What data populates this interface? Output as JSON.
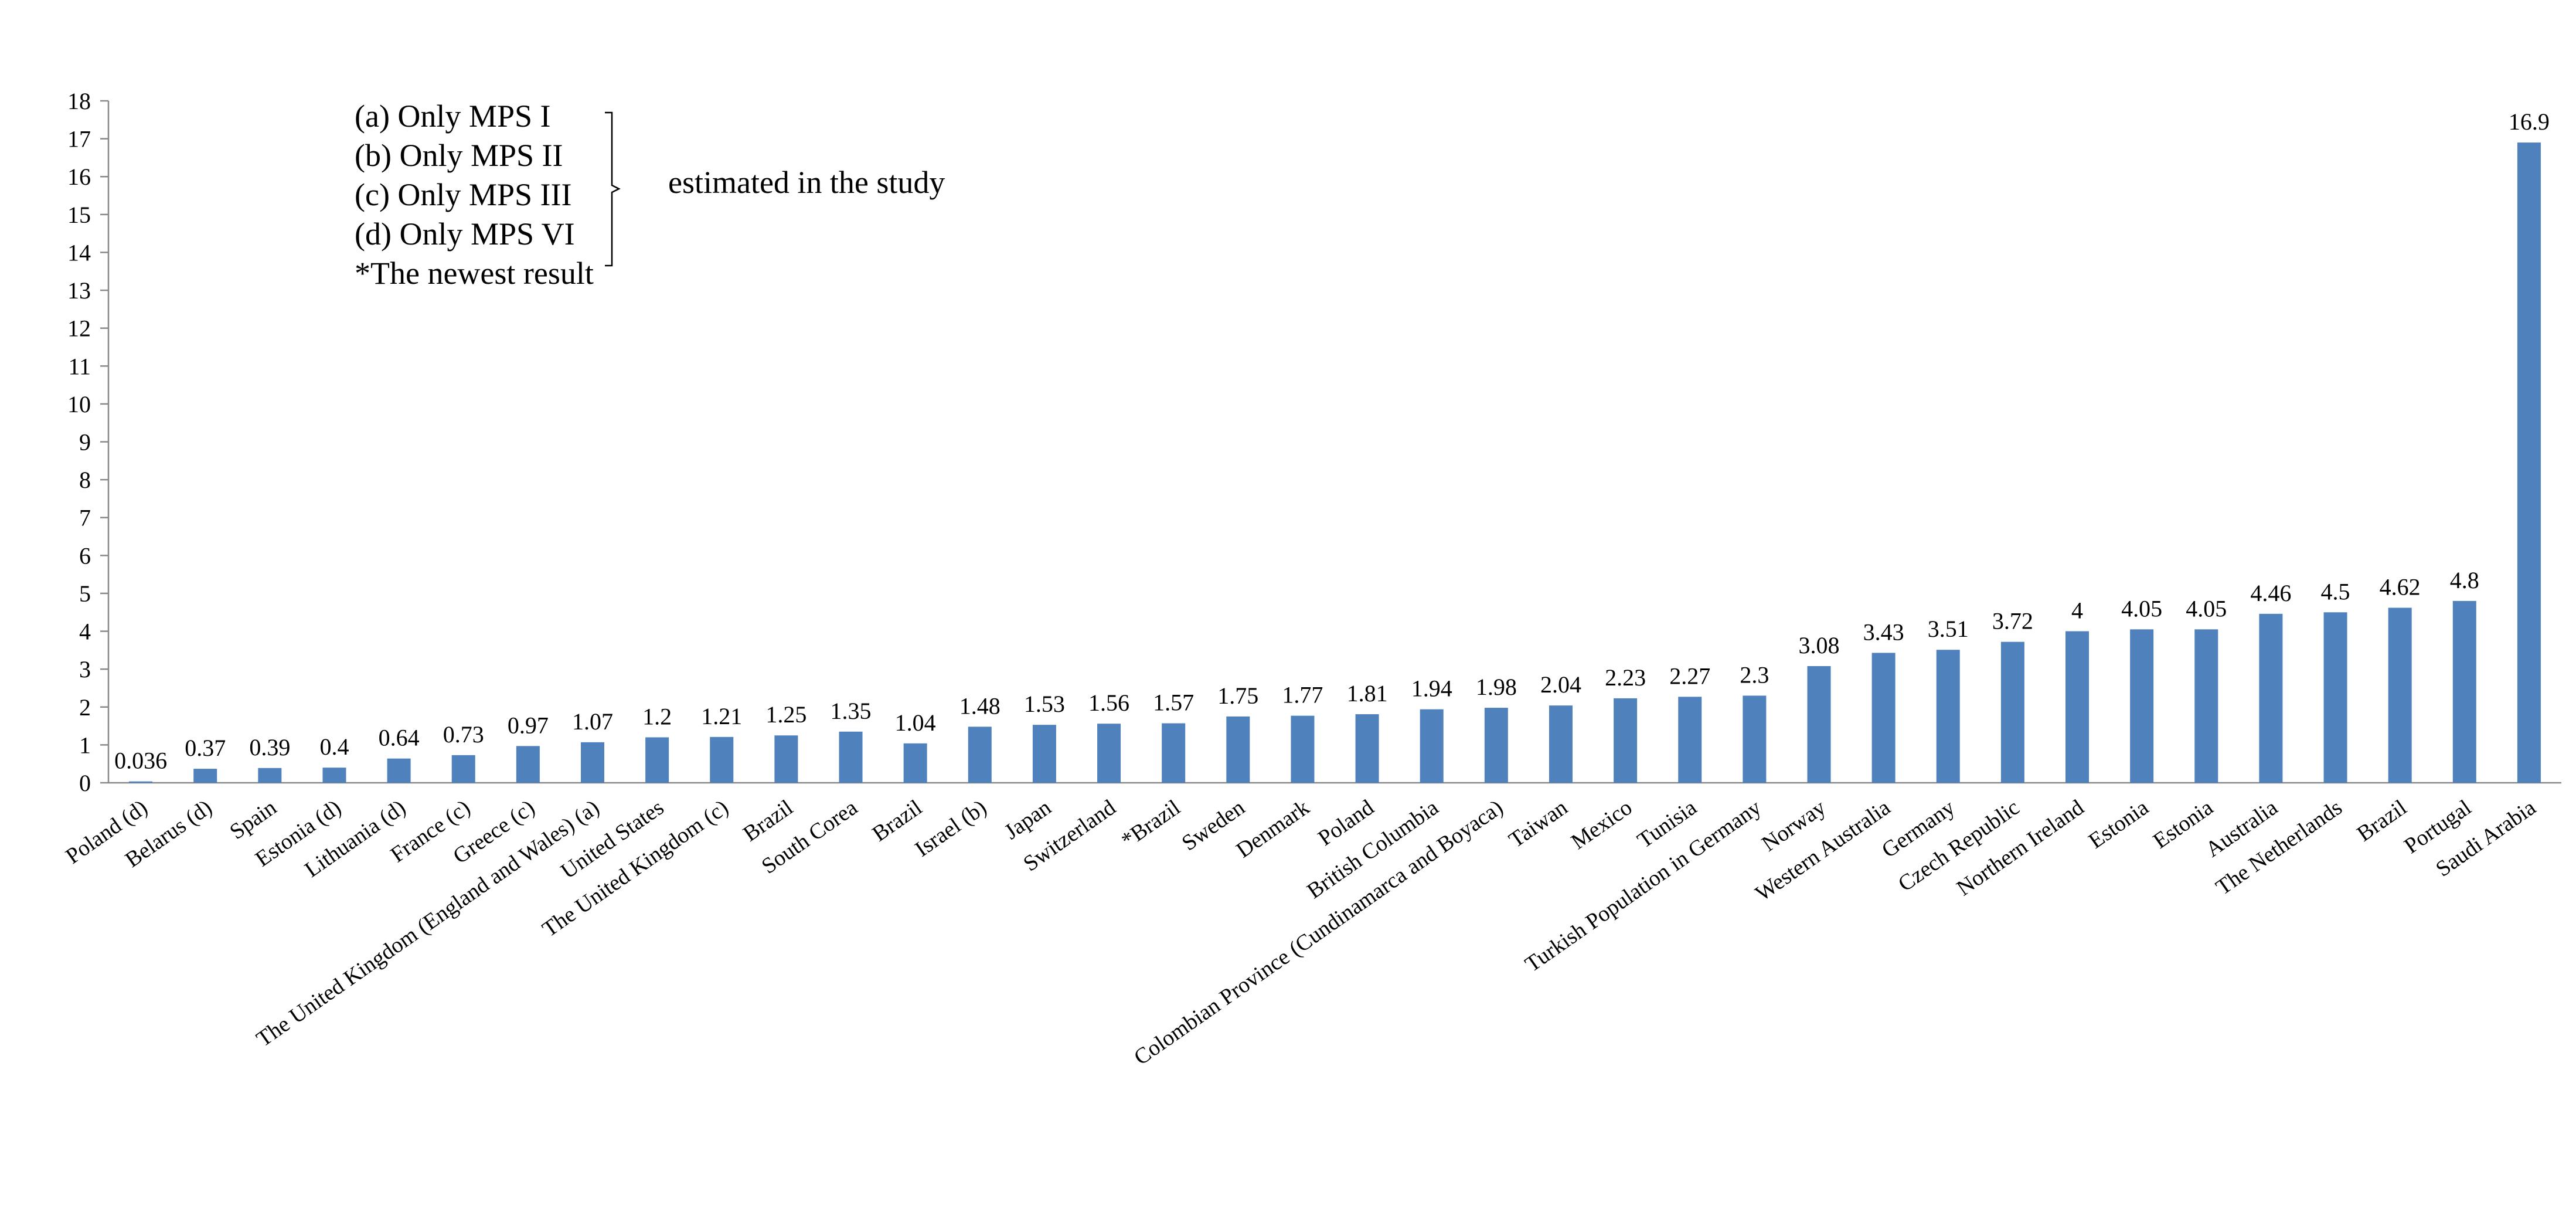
{
  "chart_data": {
    "type": "bar",
    "title": "",
    "xlabel": "",
    "ylabel": "",
    "ylim": [
      0,
      18
    ],
    "yticks": [
      0,
      1,
      2,
      3,
      4,
      5,
      6,
      7,
      8,
      9,
      10,
      11,
      12,
      13,
      14,
      15,
      16,
      17,
      18
    ],
    "grid": false,
    "bar_color": "#4f81bd",
    "categories": [
      "Poland (d)",
      "Belarus (d)",
      "Spain",
      "Estonia (d)",
      "Lithuania (d)",
      "France (c)",
      "Greece (c)",
      "The United Kingdom (England and Wales) (a)",
      "United States",
      "The United Kingdom  (c)",
      "Brazil",
      "South Corea",
      "Brazil",
      "Israel (b)",
      "Japan",
      "Switzerland",
      "*Brazil",
      "Sweden",
      "Denmark",
      "Poland",
      "British Columbia",
      "Colombian Province (Cundinamarca and Boyaca)",
      "Taiwan",
      "Mexico",
      "Tunisia",
      "Turkish Population in Germany",
      "Norway",
      "Western Australia",
      "Germany",
      "Czech Republic",
      "Northern Ireland",
      "Estonia",
      "Estonia",
      "Australia",
      "The Netherlands",
      "Brazil",
      "Portugal",
      "Saudi Arabia"
    ],
    "values": [
      0.036,
      0.37,
      0.39,
      0.4,
      0.64,
      0.73,
      0.97,
      1.07,
      1.2,
      1.21,
      1.25,
      1.35,
      1.04,
      1.48,
      1.53,
      1.56,
      1.57,
      1.75,
      1.77,
      1.81,
      1.94,
      1.98,
      2.04,
      2.23,
      2.27,
      2.3,
      3.08,
      3.43,
      3.51,
      3.72,
      4,
      4.05,
      4.05,
      4.46,
      4.5,
      4.62,
      4.8,
      16.9
    ],
    "data_labels": [
      "0.036",
      "0.37",
      "0.39",
      "0.4",
      "0.64",
      "0.73",
      "0.97",
      "1.07",
      "1.2",
      "1.21",
      "1.25",
      "1.35",
      "1.04",
      "1.48",
      "1.53",
      "1.56",
      "1.57",
      "1.75",
      "1.77",
      "1.81",
      "1.94",
      "1.98",
      "2.04",
      "2.23",
      "2.27",
      "2.3",
      "3.08",
      "3.43",
      "3.51",
      "3.72",
      "4",
      "4.05",
      "4.05",
      "4.46",
      "4.5",
      "4.62",
      "4.8",
      "16.9"
    ]
  },
  "legend": {
    "items": [
      "(a) Only MPS I",
      "(b) Only MPS II",
      "(c) Only MPS III",
      "(d) Only MPS VI"
    ],
    "footnote": "*The newest result",
    "bracket_note": "estimated in the study"
  }
}
